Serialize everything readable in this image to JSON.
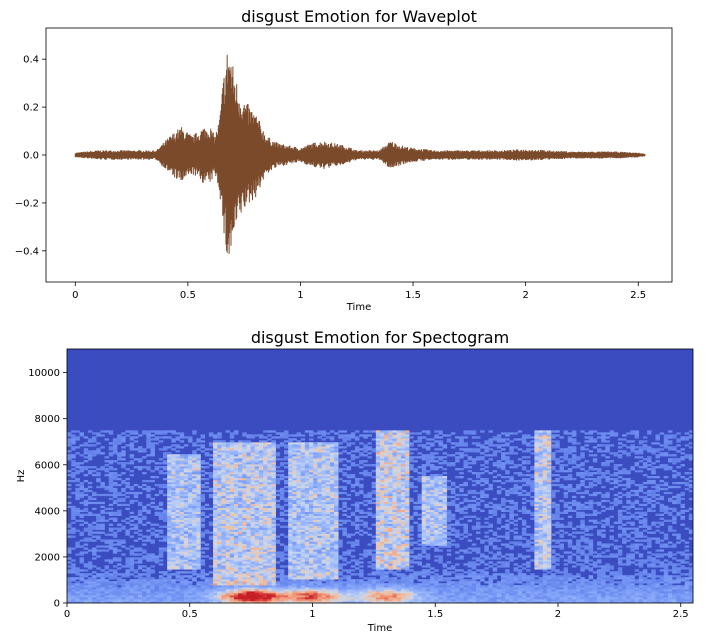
{
  "chart_data": [
    {
      "type": "line",
      "title": "disgust Emotion for Waveplot",
      "xlabel": "Time",
      "ylabel": "",
      "xlim": [
        -0.13,
        2.65
      ],
      "ylim": [
        -0.53,
        0.53
      ],
      "xticks": [
        0,
        0.5,
        1,
        1.5,
        2,
        2.5
      ],
      "xtick_labels": [
        "0",
        "0.5",
        "1",
        "1.5",
        "2",
        "2.5"
      ],
      "yticks": [
        -0.4,
        -0.2,
        0.0,
        0.2,
        0.4
      ],
      "ytick_labels": [
        "−0.4",
        "−0.2",
        "0.0",
        "0.2",
        "0.4"
      ],
      "grid": false,
      "color": "#7b4a2b",
      "series": [
        {
          "x": [
            0,
            0.1,
            0.2,
            0.3,
            0.36,
            0.42,
            0.47,
            0.52,
            0.57,
            0.6,
            0.62,
            0.64,
            0.66,
            0.68,
            0.7,
            0.72,
            0.74,
            0.76,
            0.8,
            0.85,
            0.9,
            0.95,
            1.0,
            1.05,
            1.1,
            1.15,
            1.2,
            1.25,
            1.3,
            1.35,
            1.4,
            1.45,
            1.5,
            1.6,
            1.7,
            1.8,
            1.9,
            2.0,
            2.1,
            2.2,
            2.3,
            2.4,
            2.5,
            2.53
          ],
          "amplitude": [
            0.01,
            0.02,
            0.02,
            0.02,
            0.02,
            0.08,
            0.12,
            0.08,
            0.12,
            0.12,
            0.08,
            0.15,
            0.35,
            0.48,
            0.38,
            0.3,
            0.25,
            0.22,
            0.18,
            0.08,
            0.05,
            0.04,
            0.03,
            0.05,
            0.06,
            0.05,
            0.04,
            0.02,
            0.02,
            0.02,
            0.06,
            0.04,
            0.03,
            0.02,
            0.02,
            0.02,
            0.02,
            0.025,
            0.02,
            0.015,
            0.015,
            0.015,
            0.01,
            0.005
          ]
        }
      ]
    },
    {
      "type": "heatmap",
      "title": "disgust Emotion for Spectogram",
      "xlabel": "Time",
      "ylabel": "Hz",
      "xlim": [
        0,
        2.55
      ],
      "ylim": [
        0,
        11025
      ],
      "xticks": [
        0,
        0.5,
        1,
        1.5,
        2,
        2.5
      ],
      "xtick_labels": [
        "0",
        "0.5",
        "1",
        "1.5",
        "2",
        "2.5"
      ],
      "yticks": [
        0,
        2000,
        4000,
        6000,
        8000,
        10000
      ],
      "ytick_labels": [
        "0",
        "2000",
        "4000",
        "6000",
        "8000",
        "10000"
      ],
      "colormap": "coolwarm",
      "upper_cutoff_hz": 7500,
      "bright_bands": [
        {
          "t0": 0.4,
          "t1": 0.55,
          "f0": 1500,
          "f1": 6500,
          "level": 0.4
        },
        {
          "t0": 0.6,
          "t1": 0.85,
          "f0": 800,
          "f1": 7000,
          "level": 0.45
        },
        {
          "t0": 0.9,
          "t1": 1.1,
          "f0": 1000,
          "f1": 7000,
          "level": 0.4
        },
        {
          "t0": 1.25,
          "t1": 1.4,
          "f0": 1500,
          "f1": 7500,
          "level": 0.5
        },
        {
          "t0": 1.45,
          "t1": 1.55,
          "f0": 2500,
          "f1": 5500,
          "level": 0.4
        },
        {
          "t0": 1.9,
          "t1": 1.97,
          "f0": 1500,
          "f1": 7500,
          "level": 0.45
        }
      ],
      "hot_spots": [
        {
          "t": 0.75,
          "f": 300,
          "level": 1.0
        },
        {
          "t": 1.0,
          "f": 300,
          "level": 0.7
        },
        {
          "t": 1.3,
          "f": 300,
          "level": 0.6
        }
      ]
    }
  ]
}
